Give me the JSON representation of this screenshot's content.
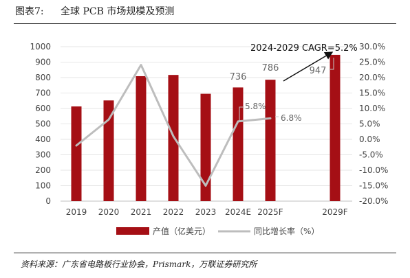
{
  "figure": {
    "number": "图表7:",
    "title": "全球 PCB 市场规模及预测",
    "source": "资料来源：广东省电路板行业协会，Prismark，万联证券研究所"
  },
  "colors": {
    "bar": "#a50f15",
    "line": "#bdbdbd",
    "arrow": "#111111",
    "grid": "#e6e6e6"
  },
  "chart_data": {
    "type": "bar",
    "categories": [
      "2019",
      "2020",
      "2021",
      "2022",
      "2023",
      "2024E",
      "2025F",
      "2029F"
    ],
    "series": [
      {
        "name": "产值（亿美元）",
        "type": "bar",
        "axis": "left",
        "values": [
          613,
          652,
          809,
          817,
          695,
          736,
          786,
          947
        ]
      },
      {
        "name": "同比增长率（%）",
        "type": "line",
        "axis": "right",
        "values": [
          -2.0,
          6.4,
          24.1,
          1.0,
          -15.0,
          5.8,
          6.8,
          null
        ]
      }
    ],
    "ylim_left": [
      0,
      1000
    ],
    "yticks_left": [
      "0",
      "100",
      "200",
      "300",
      "400",
      "500",
      "600",
      "700",
      "800",
      "900",
      "1000"
    ],
    "ylim_right": [
      -20,
      30
    ],
    "yticks_right": [
      "-20.0%",
      "-15.0%",
      "-10.0%",
      "-5.0%",
      "0.0%",
      "5.0%",
      "10.0%",
      "15.0%",
      "20.0%",
      "25.0%",
      "30.0%"
    ],
    "annotations": {
      "bar_labels": [
        {
          "index": 5,
          "text": "736"
        },
        {
          "index": 6,
          "text": "786"
        },
        {
          "index": 7,
          "text": "947"
        }
      ],
      "line_labels": [
        {
          "index": 5,
          "text": "5.8%"
        },
        {
          "index": 6,
          "text": "6.8%"
        }
      ],
      "cagr": "2024-2029 CAGR=5.2%"
    },
    "grid": true,
    "legend": "bottom"
  }
}
